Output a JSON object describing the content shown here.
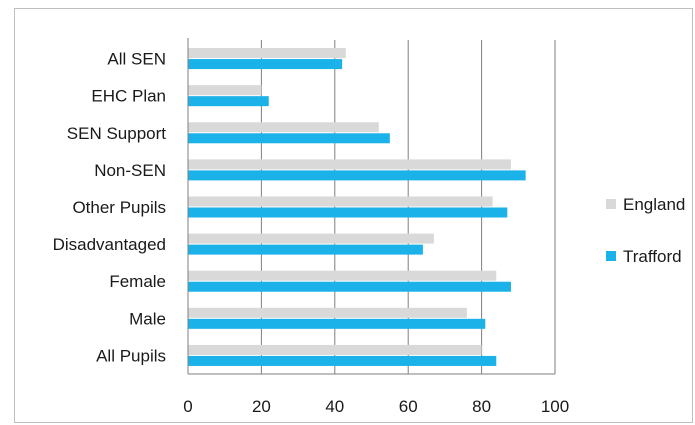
{
  "chart_data": {
    "type": "bar",
    "orientation": "horizontal",
    "categories": [
      "All SEN",
      "EHC Plan",
      "SEN Support",
      "Non-SEN",
      "Other Pupils",
      "Disadvantaged",
      "Female",
      "Male",
      "All Pupils"
    ],
    "series": [
      {
        "name": "England",
        "color": "#d9d9d9",
        "values": [
          43,
          20,
          52,
          88,
          83,
          67,
          84,
          76,
          80
        ]
      },
      {
        "name": "Trafford",
        "color": "#1ab2e8",
        "values": [
          42,
          22,
          55,
          92,
          87,
          64,
          88,
          81,
          84
        ]
      }
    ],
    "xlim": [
      0,
      100
    ],
    "xticks": [
      0,
      20,
      40,
      60,
      80,
      100
    ],
    "grid": true,
    "legend_position": "right",
    "title": "",
    "xlabel": "",
    "ylabel": ""
  }
}
